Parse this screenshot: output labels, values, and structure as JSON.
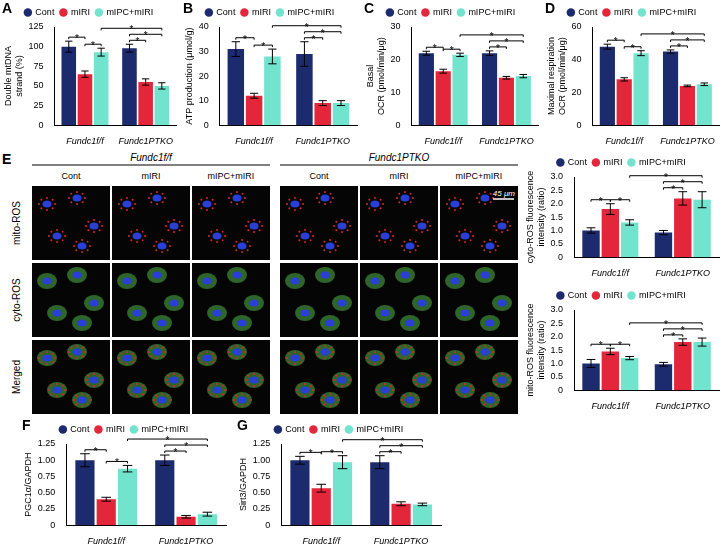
{
  "chart_data": [
    {
      "type": "bar",
      "title": "A",
      "y_label": [
        "Double mtDNA",
        "strand (%)"
      ],
      "categories": [
        "Fundc1f/f",
        "Fundc1PTKO"
      ],
      "series": [
        {
          "name": "Cont",
          "color": "#1c2a6e",
          "values": [
            100,
            98
          ],
          "errors": [
            7,
            5
          ]
        },
        {
          "name": "mIRI",
          "color": "#e3263a",
          "values": [
            65,
            55
          ],
          "errors": [
            4,
            4
          ]
        },
        {
          "name": "mIPC+mIRI",
          "color": "#72e3cc",
          "values": [
            93,
            50
          ],
          "errors": [
            5,
            4
          ]
        }
      ],
      "ylim": [
        0,
        125
      ],
      "yticks": [
        0,
        25,
        50,
        75,
        100,
        125
      ],
      "grid": false,
      "legend": "top",
      "annotations": [
        {
          "text": "*",
          "between": [
            [
              "Fundc1f/f",
              "Cont"
            ],
            [
              "Fundc1f/f",
              "mIRI"
            ]
          ]
        },
        {
          "text": "*",
          "between": [
            [
              "Fundc1f/f",
              "mIRI"
            ],
            [
              "Fundc1f/f",
              "mIPC+mIRI"
            ]
          ]
        },
        {
          "text": "*",
          "between": [
            [
              "Fundc1PTKO",
              "Cont"
            ],
            [
              "Fundc1PTKO",
              "mIRI"
            ]
          ]
        },
        {
          "text": "*",
          "between": [
            [
              "Fundc1PTKO",
              "Cont"
            ],
            [
              "Fundc1PTKO",
              "mIPC+mIRI"
            ]
          ]
        },
        {
          "text": "*",
          "between": [
            [
              "Fundc1f/f",
              "mIPC+mIRI"
            ],
            [
              "Fundc1PTKO",
              "mIPC+mIRI"
            ]
          ]
        }
      ]
    },
    {
      "type": "bar",
      "title": "B",
      "y_label": "ATP production (μmol/g)",
      "categories": [
        "Fundc1f/f",
        "Fundc1PTKO"
      ],
      "series": [
        {
          "name": "Cont",
          "color": "#1c2a6e",
          "values": [
            31,
            29
          ],
          "errors": [
            3,
            5
          ]
        },
        {
          "name": "mIRI",
          "color": "#e3263a",
          "values": [
            12,
            9
          ],
          "errors": [
            1,
            1
          ]
        },
        {
          "name": "mIPC+mIRI",
          "color": "#72e3cc",
          "values": [
            28,
            9
          ],
          "errors": [
            3,
            1
          ]
        }
      ],
      "ylim": [
        0,
        40
      ],
      "yticks": [
        0,
        10,
        20,
        30,
        40
      ],
      "grid": false,
      "legend": "top",
      "annotations": [
        {
          "text": "*",
          "between": [
            [
              "Fundc1f/f",
              "Cont"
            ],
            [
              "Fundc1f/f",
              "mIRI"
            ]
          ]
        },
        {
          "text": "*",
          "between": [
            [
              "Fundc1f/f",
              "mIRI"
            ],
            [
              "Fundc1f/f",
              "mIPC+mIRI"
            ]
          ]
        },
        {
          "text": "*",
          "between": [
            [
              "Fundc1PTKO",
              "Cont"
            ],
            [
              "Fundc1PTKO",
              "mIRI"
            ]
          ]
        },
        {
          "text": "*",
          "between": [
            [
              "Fundc1PTKO",
              "Cont"
            ],
            [
              "Fundc1PTKO",
              "mIPC+mIRI"
            ]
          ]
        },
        {
          "text": "*",
          "between": [
            [
              "Fundc1f/f",
              "mIPC+mIRI"
            ],
            [
              "Fundc1PTKO",
              "mIPC+mIRI"
            ]
          ]
        }
      ]
    },
    {
      "type": "bar",
      "title": "C",
      "y_label": [
        "Basal",
        "OCR (pmol/min/μg)"
      ],
      "categories": [
        "Fundc1f/f",
        "Fundc1PTKO"
      ],
      "series": [
        {
          "name": "Cont",
          "color": "#1c2a6e",
          "values": [
            22,
            22
          ],
          "errors": [
            0.6,
            0.7
          ]
        },
        {
          "name": "mIRI",
          "color": "#e3263a",
          "values": [
            16.5,
            14.5
          ],
          "errors": [
            0.6,
            0.4
          ]
        },
        {
          "name": "mIPC+mIRI",
          "color": "#72e3cc",
          "values": [
            21.5,
            15
          ],
          "errors": [
            0.5,
            0.5
          ]
        }
      ],
      "ylim": [
        0,
        30
      ],
      "yticks": [
        0,
        10,
        20,
        30
      ],
      "grid": false,
      "legend": "top",
      "annotations": [
        {
          "text": "*",
          "between": [
            [
              "Fundc1f/f",
              "Cont"
            ],
            [
              "Fundc1f/f",
              "mIRI"
            ]
          ]
        },
        {
          "text": "*",
          "between": [
            [
              "Fundc1f/f",
              "mIRI"
            ],
            [
              "Fundc1f/f",
              "mIPC+mIRI"
            ]
          ]
        },
        {
          "text": "*",
          "between": [
            [
              "Fundc1PTKO",
              "Cont"
            ],
            [
              "Fundc1PTKO",
              "mIRI"
            ]
          ]
        },
        {
          "text": "*",
          "between": [
            [
              "Fundc1PTKO",
              "Cont"
            ],
            [
              "Fundc1PTKO",
              "mIPC+mIRI"
            ]
          ]
        },
        {
          "text": "*",
          "between": [
            [
              "Fundc1f/f",
              "mIPC+mIRI"
            ],
            [
              "Fundc1PTKO",
              "mIPC+mIRI"
            ]
          ]
        }
      ]
    },
    {
      "type": "bar",
      "title": "D",
      "y_label": [
        "Maximal respiration",
        "OCR (pmol/min/μg)"
      ],
      "categories": [
        "Fundc1f/f",
        "Fundc1PTKO"
      ],
      "series": [
        {
          "name": "Cont",
          "color": "#1c2a6e",
          "values": [
            48,
            45
          ],
          "errors": [
            1.5,
            1
          ]
        },
        {
          "name": "mIRI",
          "color": "#e3263a",
          "values": [
            28,
            24
          ],
          "errors": [
            1,
            0.5
          ]
        },
        {
          "name": "mIPC+mIRI",
          "color": "#72e3cc",
          "values": [
            44,
            25
          ],
          "errors": [
            1.5,
            0.8
          ]
        }
      ],
      "ylim": [
        0,
        60
      ],
      "yticks": [
        0,
        20,
        40,
        60
      ],
      "grid": false,
      "legend": "top",
      "annotations": [
        {
          "text": "*",
          "between": [
            [
              "Fundc1f/f",
              "Cont"
            ],
            [
              "Fundc1f/f",
              "mIRI"
            ]
          ]
        },
        {
          "text": "*",
          "between": [
            [
              "Fundc1f/f",
              "mIRI"
            ],
            [
              "Fundc1f/f",
              "mIPC+mIRI"
            ]
          ]
        },
        {
          "text": "*",
          "between": [
            [
              "Fundc1PTKO",
              "Cont"
            ],
            [
              "Fundc1PTKO",
              "mIRI"
            ]
          ]
        },
        {
          "text": "*",
          "between": [
            [
              "Fundc1PTKO",
              "Cont"
            ],
            [
              "Fundc1PTKO",
              "mIPC+mIRI"
            ]
          ]
        },
        {
          "text": "*",
          "between": [
            [
              "Fundc1f/f",
              "mIPC+mIRI"
            ],
            [
              "Fundc1PTKO",
              "mIPC+mIRI"
            ]
          ]
        }
      ]
    },
    {
      "type": "bar",
      "y_label": [
        "cyto-ROS fluorescence",
        "intensity (ratio)"
      ],
      "categories": [
        "Fundc1f/f",
        "Fundc1PTKO"
      ],
      "series": [
        {
          "name": "Cont",
          "color": "#1c2a6e",
          "values": [
            1.0,
            0.92
          ],
          "errors": [
            0.1,
            0.08
          ]
        },
        {
          "name": "mIRI",
          "color": "#e3263a",
          "values": [
            1.8,
            2.2
          ],
          "errors": [
            0.2,
            0.25
          ]
        },
        {
          "name": "mIPC+mIRI",
          "color": "#72e3cc",
          "values": [
            1.3,
            2.15
          ],
          "errors": [
            0.1,
            0.3
          ]
        }
      ],
      "ylim": [
        0,
        3
      ],
      "yticks": [
        0,
        0.5,
        {
          "value": 1,
          "label": "1.0"
        },
        1.5,
        {
          "value": 2,
          "label": "2.0"
        },
        2.5,
        {
          "value": 3,
          "label": "3.0"
        }
      ],
      "grid": false,
      "legend": "top",
      "annotations": [
        {
          "text": "*",
          "between": [
            [
              "Fundc1f/f",
              "Cont"
            ],
            [
              "Fundc1f/f",
              "mIRI"
            ]
          ]
        },
        {
          "text": "*",
          "between": [
            [
              "Fundc1f/f",
              "mIRI"
            ],
            [
              "Fundc1f/f",
              "mIPC+mIRI"
            ]
          ]
        },
        {
          "text": "*",
          "between": [
            [
              "Fundc1PTKO",
              "Cont"
            ],
            [
              "Fundc1PTKO",
              "mIRI"
            ]
          ]
        },
        {
          "text": "*",
          "between": [
            [
              "Fundc1PTKO",
              "Cont"
            ],
            [
              "Fundc1PTKO",
              "mIPC+mIRI"
            ]
          ]
        },
        {
          "text": "*",
          "between": [
            [
              "Fundc1f/f",
              "mIPC+mIRI"
            ],
            [
              "Fundc1PTKO",
              "mIPC+mIRI"
            ]
          ]
        }
      ]
    },
    {
      "type": "bar",
      "y_label": [
        "mito-ROS fluorescence",
        "intensity (ratio)"
      ],
      "categories": [
        "Fundc1f/f",
        "Fundc1PTKO"
      ],
      "series": [
        {
          "name": "Cont",
          "color": "#1c2a6e",
          "values": [
            1.0,
            0.97
          ],
          "errors": [
            0.15,
            0.07
          ]
        },
        {
          "name": "mIRI",
          "color": "#e3263a",
          "values": [
            1.45,
            1.8
          ],
          "errors": [
            0.12,
            0.12
          ]
        },
        {
          "name": "mIPC+mIRI",
          "color": "#72e3cc",
          "values": [
            1.2,
            1.8
          ],
          "errors": [
            0.06,
            0.15
          ]
        }
      ],
      "ylim": [
        0,
        3
      ],
      "yticks": [
        0,
        0.5,
        {
          "value": 1,
          "label": "1.0"
        },
        1.5,
        {
          "value": 2,
          "label": "2.0"
        },
        2.5,
        {
          "value": 3,
          "label": "3.0"
        }
      ],
      "grid": false,
      "legend": "top",
      "annotations": [
        {
          "text": "*",
          "between": [
            [
              "Fundc1f/f",
              "Cont"
            ],
            [
              "Fundc1f/f",
              "mIRI"
            ]
          ]
        },
        {
          "text": "*",
          "between": [
            [
              "Fundc1f/f",
              "mIRI"
            ],
            [
              "Fundc1f/f",
              "mIPC+mIRI"
            ]
          ]
        },
        {
          "text": "*",
          "between": [
            [
              "Fundc1PTKO",
              "Cont"
            ],
            [
              "Fundc1PTKO",
              "mIRI"
            ]
          ]
        },
        {
          "text": "*",
          "between": [
            [
              "Fundc1PTKO",
              "Cont"
            ],
            [
              "Fundc1PTKO",
              "mIPC+mIRI"
            ]
          ]
        },
        {
          "text": "*",
          "between": [
            [
              "Fundc1f/f",
              "mIPC+mIRI"
            ],
            [
              "Fundc1PTKO",
              "mIPC+mIRI"
            ]
          ]
        }
      ]
    },
    {
      "type": "bar",
      "title": "F",
      "y_label": "PGC1α/GAPDH",
      "categories": [
        "Fundc1f/f",
        "Fundc1PTKO"
      ],
      "series": [
        {
          "name": "Cont",
          "color": "#1c2a6e",
          "values": [
            1.0,
            1.0
          ],
          "errors": [
            0.1,
            0.08
          ]
        },
        {
          "name": "mIRI",
          "color": "#e3263a",
          "values": [
            0.4,
            0.13
          ],
          "errors": [
            0.03,
            0.02
          ]
        },
        {
          "name": "mIPC+mIRI",
          "color": "#72e3cc",
          "values": [
            0.87,
            0.17
          ],
          "errors": [
            0.05,
            0.03
          ]
        }
      ],
      "ylim": [
        0,
        1.25
      ],
      "yticks": [
        0,
        0.25,
        {
          "value": 0.5,
          "label": "0.50"
        },
        0.75,
        {
          "value": 1,
          "label": "1.00"
        },
        1.25
      ],
      "grid": false,
      "legend": "top",
      "annotations": [
        {
          "text": "*",
          "between": [
            [
              "Fundc1f/f",
              "Cont"
            ],
            [
              "Fundc1f/f",
              "mIRI"
            ]
          ]
        },
        {
          "text": "*",
          "between": [
            [
              "Fundc1f/f",
              "mIRI"
            ],
            [
              "Fundc1f/f",
              "mIPC+mIRI"
            ]
          ]
        },
        {
          "text": "*",
          "between": [
            [
              "Fundc1PTKO",
              "Cont"
            ],
            [
              "Fundc1PTKO",
              "mIRI"
            ]
          ]
        },
        {
          "text": "*",
          "between": [
            [
              "Fundc1PTKO",
              "Cont"
            ],
            [
              "Fundc1PTKO",
              "mIPC+mIRI"
            ]
          ]
        },
        {
          "text": "*",
          "between": [
            [
              "Fundc1f/f",
              "mIPC+mIRI"
            ],
            [
              "Fundc1PTKO",
              "mIPC+mIRI"
            ]
          ]
        }
      ]
    },
    {
      "type": "bar",
      "title": "G",
      "y_label": "Sirt3/GAPDH",
      "categories": [
        "Fundc1f/f",
        "Fundc1PTKO"
      ],
      "series": [
        {
          "name": "Cont",
          "color": "#1c2a6e",
          "values": [
            1.0,
            0.97
          ],
          "errors": [
            0.06,
            0.1
          ]
        },
        {
          "name": "mIRI",
          "color": "#e3263a",
          "values": [
            0.57,
            0.33
          ],
          "errors": [
            0.06,
            0.03
          ]
        },
        {
          "name": "mIPC+mIRI",
          "color": "#72e3cc",
          "values": [
            0.97,
            0.32
          ],
          "errors": [
            0.1,
            0.02
          ]
        }
      ],
      "ylim": [
        0,
        1.25
      ],
      "yticks": [
        0,
        0.25,
        {
          "value": 0.5,
          "label": "0.50"
        },
        0.75,
        {
          "value": 1,
          "label": "1.00"
        },
        1.25
      ],
      "grid": false,
      "legend": "top",
      "annotations": [
        {
          "text": "*",
          "between": [
            [
              "Fundc1f/f",
              "Cont"
            ],
            [
              "Fundc1f/f",
              "mIRI"
            ]
          ]
        },
        {
          "text": "*",
          "between": [
            [
              "Fundc1f/f",
              "mIRI"
            ],
            [
              "Fundc1f/f",
              "mIPC+mIRI"
            ]
          ]
        },
        {
          "text": "*",
          "between": [
            [
              "Fundc1PTKO",
              "Cont"
            ],
            [
              "Fundc1PTKO",
              "mIRI"
            ]
          ]
        },
        {
          "text": "*",
          "between": [
            [
              "Fundc1PTKO",
              "Cont"
            ],
            [
              "Fundc1PTKO",
              "mIPC+mIRI"
            ]
          ]
        },
        {
          "text": "*",
          "between": [
            [
              "Fundc1f/f",
              "mIPC+mIRI"
            ],
            [
              "Fundc1PTKO",
              "mIPC+mIRI"
            ]
          ]
        }
      ]
    }
  ],
  "image_panel": {
    "label": "E",
    "groups": [
      "Fundc1f/f",
      "Fundc1PTKO"
    ],
    "columns": [
      "Cont",
      "mIRI",
      "mIPC+mIRI"
    ],
    "rows": [
      "mito-ROS",
      "cyto-ROS",
      "Merged"
    ],
    "scale_bar": "45 μm"
  }
}
